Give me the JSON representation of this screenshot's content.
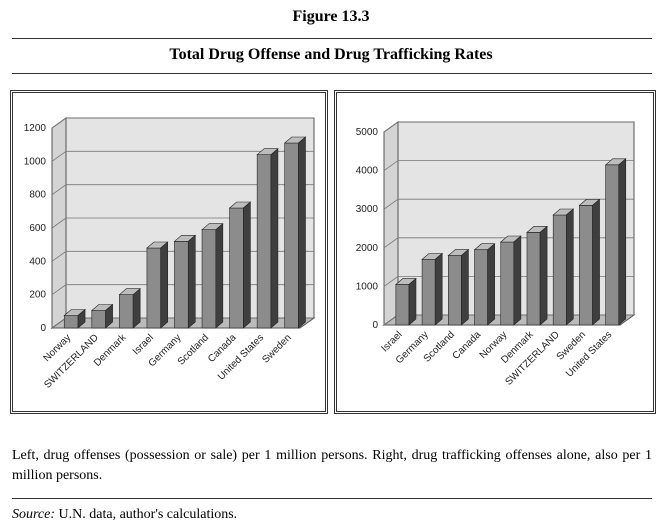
{
  "figure_label": "Figure 13.3",
  "heading": "Total Drug Offense and Drug Trafficking Rates",
  "caption": "Left, drug offenses (possession or sale) per 1 million persons. Right, drug trafficking offenses alone, also per 1 million persons.",
  "source": {
    "label": "Source:",
    "text": "U.N. data, author's calculations."
  },
  "chart_data": [
    {
      "type": "bar",
      "categories": [
        "Norway",
        "SWITZERLAND",
        "Denmark",
        "Israel",
        "Germany",
        "Scotland",
        "Canada",
        "United States",
        "Sweden"
      ],
      "values": [
        75,
        105,
        200,
        480,
        520,
        590,
        720,
        1040,
        1110
      ],
      "color": "#8c8c8c",
      "ylim": [
        0,
        1200
      ],
      "yticks": [
        0,
        200,
        400,
        600,
        800,
        1000,
        1200
      ],
      "grid": true
    },
    {
      "type": "bar",
      "categories": [
        "Israel",
        "Germany",
        "Scotland",
        "Canada",
        "Norway",
        "Denmark",
        "SWITZERLAND",
        "Sweden",
        "United States"
      ],
      "values": [
        1050,
        1700,
        1800,
        1950,
        2150,
        2400,
        2850,
        3100,
        4150
      ],
      "color": "#8c8c8c",
      "ylim": [
        0,
        5000
      ],
      "yticks": [
        0,
        1000,
        2000,
        3000,
        4000,
        5000
      ],
      "grid": true
    }
  ]
}
